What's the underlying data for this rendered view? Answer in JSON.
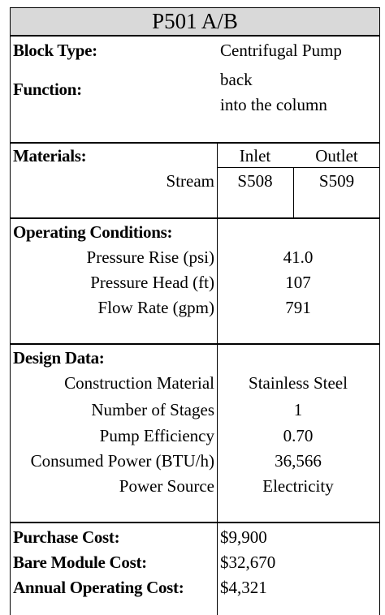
{
  "title": "P501 A/B",
  "block_type_label": "Block Type:",
  "block_type_value": "Centrifugal Pump",
  "function_label": "Function:",
  "function_line1": "back",
  "function_line2": "into the column",
  "materials_label": "Materials:",
  "inlet_label": "Inlet",
  "outlet_label": "Outlet",
  "stream_label": "Stream",
  "inlet_stream": "S508",
  "outlet_stream": "S509",
  "operating_label": "Operating Conditions:",
  "operating": [
    {
      "label": "Pressure Rise (psi)",
      "value": "41.0"
    },
    {
      "label": "Pressure Head (ft)",
      "value": "107"
    },
    {
      "label": "Flow Rate (gpm)",
      "value": "791"
    }
  ],
  "design_label": "Design Data:",
  "design": [
    {
      "label": "Construction Material",
      "value": "Stainless Steel"
    },
    {
      "label": "Number of Stages",
      "value": "1"
    },
    {
      "label": "Pump Efficiency",
      "value": "0.70"
    },
    {
      "label": "Consumed Power (BTU/h)",
      "value": "36,566"
    },
    {
      "label": "Power Source",
      "value": "Electricity"
    }
  ],
  "costs": [
    {
      "label": "Purchase Cost:",
      "value": "$9,900"
    },
    {
      "label": "Bare Module Cost:",
      "value": "$32,670"
    },
    {
      "label": "Annual Operating Cost:",
      "value": "$4,321"
    }
  ]
}
